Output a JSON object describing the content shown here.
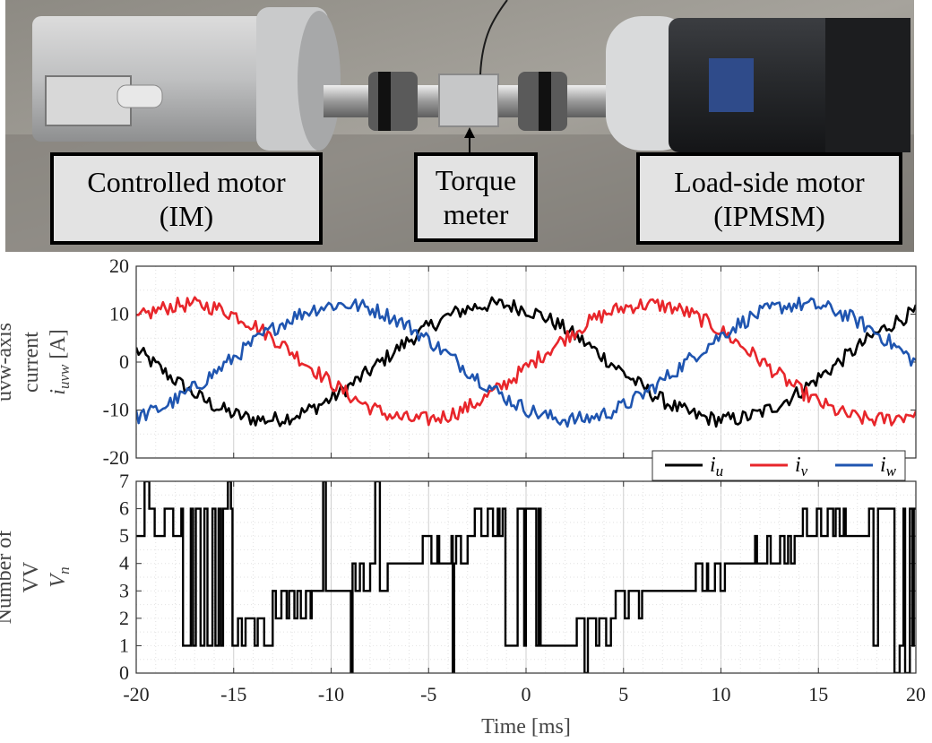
{
  "photo": {
    "labels": {
      "controlled": [
        "Controlled motor",
        "(IM)"
      ],
      "torque": [
        "Torque",
        "meter"
      ],
      "load": [
        "Load-side motor",
        "(IPMSM)"
      ]
    }
  },
  "chart_data": [
    {
      "type": "line",
      "xlim": [
        -20,
        20
      ],
      "ylim": [
        -20,
        20
      ],
      "xticks": [
        -20,
        -15,
        -10,
        -5,
        0,
        5,
        10,
        15,
        20
      ],
      "yticks": [
        -20,
        -10,
        0,
        10,
        20
      ],
      "ylabel_lines": [
        "uvw-axis",
        "current",
        "i_uvw [A]"
      ],
      "grid": true,
      "legend_position": "below-right",
      "amplitude_A": 12,
      "period_ms": 23.5,
      "series": [
        {
          "name": "i_u",
          "label_base": "i",
          "label_sub": "u",
          "color": "#000000",
          "phase_deg": 0
        },
        {
          "name": "i_v",
          "label_base": "i",
          "label_sub": "v",
          "color": "#e8262b",
          "phase_deg": -120
        },
        {
          "name": "i_w",
          "label_base": "i",
          "label_sub": "w",
          "color": "#1f55b0",
          "phase_deg": 120
        }
      ]
    },
    {
      "type": "line",
      "xlim": [
        -20,
        20
      ],
      "ylim": [
        0,
        7
      ],
      "xticks": [
        -20,
        -15,
        -10,
        -5,
        0,
        5,
        10,
        15,
        20
      ],
      "yticks": [
        0,
        1,
        2,
        3,
        4,
        5,
        6,
        7
      ],
      "xlabel": "Time [ms]",
      "ylabel_lines": [
        "Number of",
        "VV",
        "V_n"
      ],
      "grid": true,
      "series": [
        {
          "name": "V_n",
          "color": "#000000",
          "segments": [
            {
              "x": [
                -20,
                -19.3
              ],
              "levels": [
                5,
                6
              ]
            },
            {
              "x": [
                -19.3,
                -17.6
              ],
              "levels": [
                6,
                5
              ]
            },
            {
              "x": [
                -17.6,
                -15.0
              ],
              "levels": [
                6,
                1
              ]
            },
            {
              "x": [
                -15.0,
                -13.0
              ],
              "levels": [
                1,
                2
              ]
            },
            {
              "x": [
                -13.0,
                -11.0
              ],
              "levels": [
                2,
                3
              ]
            },
            {
              "x": [
                -11.0,
                -8.9
              ],
              "levels": [
                3,
                3
              ]
            },
            {
              "x": [
                -8.9,
                -7.1
              ],
              "levels": [
                3,
                4
              ]
            },
            {
              "x": [
                -7.1,
                -5.3
              ],
              "levels": [
                4,
                4
              ]
            },
            {
              "x": [
                -5.3,
                -3.0
              ],
              "levels": [
                4,
                5
              ]
            },
            {
              "x": [
                -3.0,
                -1.2
              ],
              "levels": [
                5,
                6
              ]
            },
            {
              "x": [
                -1.2,
                1.4
              ],
              "levels": [
                6,
                1
              ]
            },
            {
              "x": [
                1.4,
                2.6
              ],
              "levels": [
                1,
                1
              ]
            },
            {
              "x": [
                2.6,
                4.6
              ],
              "levels": [
                1,
                2
              ]
            },
            {
              "x": [
                4.6,
                6.6
              ],
              "levels": [
                2,
                3
              ]
            },
            {
              "x": [
                6.6,
                8.2
              ],
              "levels": [
                3,
                3
              ]
            },
            {
              "x": [
                8.2,
                10.2
              ],
              "levels": [
                3,
                4
              ]
            },
            {
              "x": [
                10.2,
                11.5
              ],
              "levels": [
                4,
                4
              ]
            },
            {
              "x": [
                11.5,
                13.8
              ],
              "levels": [
                4,
                5
              ]
            },
            {
              "x": [
                13.8,
                16.4
              ],
              "levels": [
                5,
                6
              ]
            },
            {
              "x": [
                16.4,
                17.6
              ],
              "levels": [
                5,
                5
              ]
            },
            {
              "x": [
                17.6,
                20
              ],
              "levels": [
                6,
                1
              ]
            }
          ]
        }
      ]
    }
  ]
}
